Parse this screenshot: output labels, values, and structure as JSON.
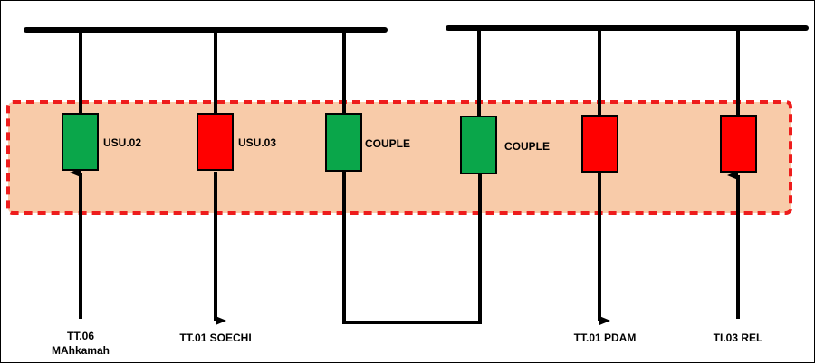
{
  "colors": {
    "background": "#ffffff",
    "line": "#000000",
    "zone_fill": "#f8cba9",
    "zone_border": "#ee1c1c",
    "closed": "#0aa64a",
    "open": "#ff0000"
  },
  "breakers": [
    {
      "id": "b1",
      "label": "USU.02",
      "state": "closed"
    },
    {
      "id": "b2",
      "label": "USU.03",
      "state": "open"
    },
    {
      "id": "b3",
      "label": "COUPLE",
      "state": "closed"
    },
    {
      "id": "b4",
      "label": "COUPLE",
      "state": "closed"
    },
    {
      "id": "b5",
      "label": "",
      "state": "open"
    },
    {
      "id": "b6",
      "label": "",
      "state": "open"
    }
  ],
  "feeders": {
    "f1": {
      "line1": "TT.06",
      "line2": "MAhkamah",
      "direction": "in"
    },
    "f2": {
      "line1": "TT.01 SOECHI",
      "direction": "out"
    },
    "f5": {
      "line1": "TT.01 PDAM",
      "direction": "out"
    },
    "f6": {
      "line1": "TI.03 REL",
      "direction": "in"
    }
  }
}
